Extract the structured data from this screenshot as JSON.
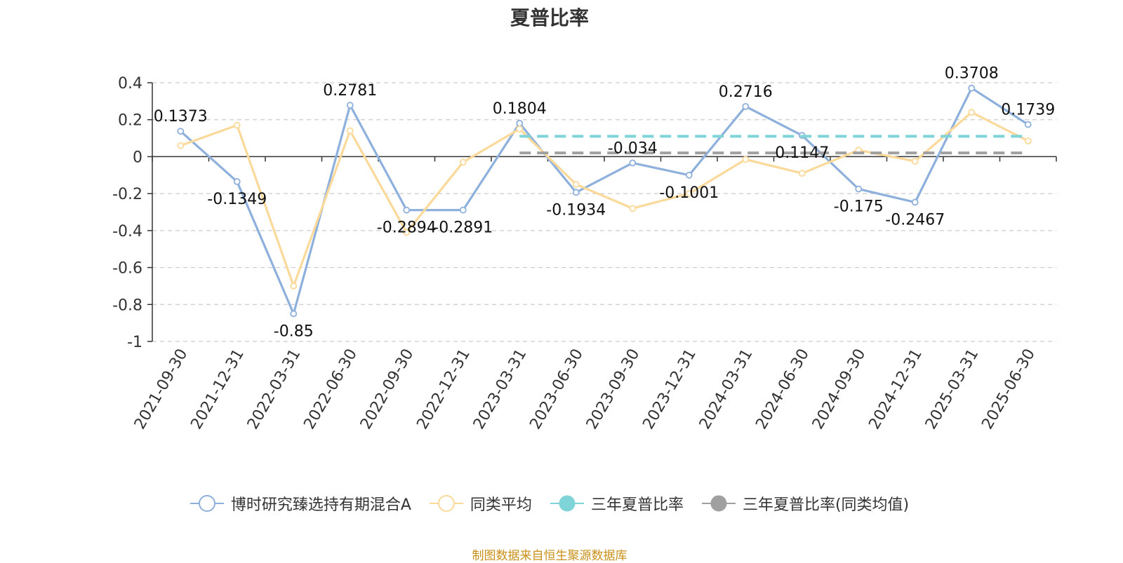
{
  "chart_data": {
    "type": "line",
    "title": "夏普比率",
    "categories": [
      "2021-09-30",
      "2021-12-31",
      "2022-03-31",
      "2022-06-30",
      "2022-09-30",
      "2022-12-31",
      "2023-03-31",
      "2023-06-30",
      "2023-09-30",
      "2023-12-31",
      "2024-03-31",
      "2024-06-30",
      "2024-09-30",
      "2024-12-31",
      "2025-03-31",
      "2025-06-30"
    ],
    "ylim": [
      -1,
      0.4
    ],
    "yticks": [
      "0.4",
      "0.2",
      "0",
      "-0.2",
      "-0.4",
      "-0.6",
      "-0.8",
      "-1"
    ],
    "grid": true,
    "legend_position": "bottom",
    "series": [
      {
        "name": "博时研究臻选持有期混合A",
        "color": "#8eb0dc",
        "values": [
          0.1373,
          -0.1349,
          -0.85,
          0.2781,
          -0.2894,
          -0.2891,
          0.1804,
          -0.1934,
          -0.034,
          -0.1001,
          0.2716,
          0.1147,
          -0.175,
          -0.2467,
          0.3708,
          0.1739
        ],
        "labels": [
          "0.1373",
          "-0.1349",
          "-0.85",
          "0.2781",
          "-0.2894",
          "-0.2891",
          "0.1804",
          "-0.1934",
          "-0.034",
          "-0.1001",
          "0.2716",
          "0.1147",
          "-0.175",
          "-0.2467",
          "0.3708",
          "0.1739"
        ]
      },
      {
        "name": "同类平均",
        "color": "#fbd99a",
        "values": [
          0.06,
          0.17,
          -0.7,
          0.14,
          -0.41,
          -0.03,
          0.15,
          -0.15,
          -0.28,
          -0.2,
          -0.015,
          -0.09,
          0.035,
          -0.025,
          0.24,
          0.085
        ]
      },
      {
        "name": "三年夏普比率",
        "color": "#7fd4d8",
        "values": [
          null,
          null,
          null,
          null,
          null,
          null,
          0.11,
          0.11,
          0.11,
          0.11,
          0.11,
          0.11,
          0.11,
          0.11,
          0.11,
          0.11
        ]
      },
      {
        "name": "三年夏普比率(同类均值)",
        "color": "#a0a0a0",
        "values": [
          null,
          null,
          null,
          null,
          null,
          null,
          0.02,
          0.02,
          0.02,
          0.02,
          0.02,
          0.02,
          0.02,
          0.02,
          0.02,
          0.02
        ]
      }
    ],
    "source": "制图数据来自恒生聚源数据库"
  }
}
